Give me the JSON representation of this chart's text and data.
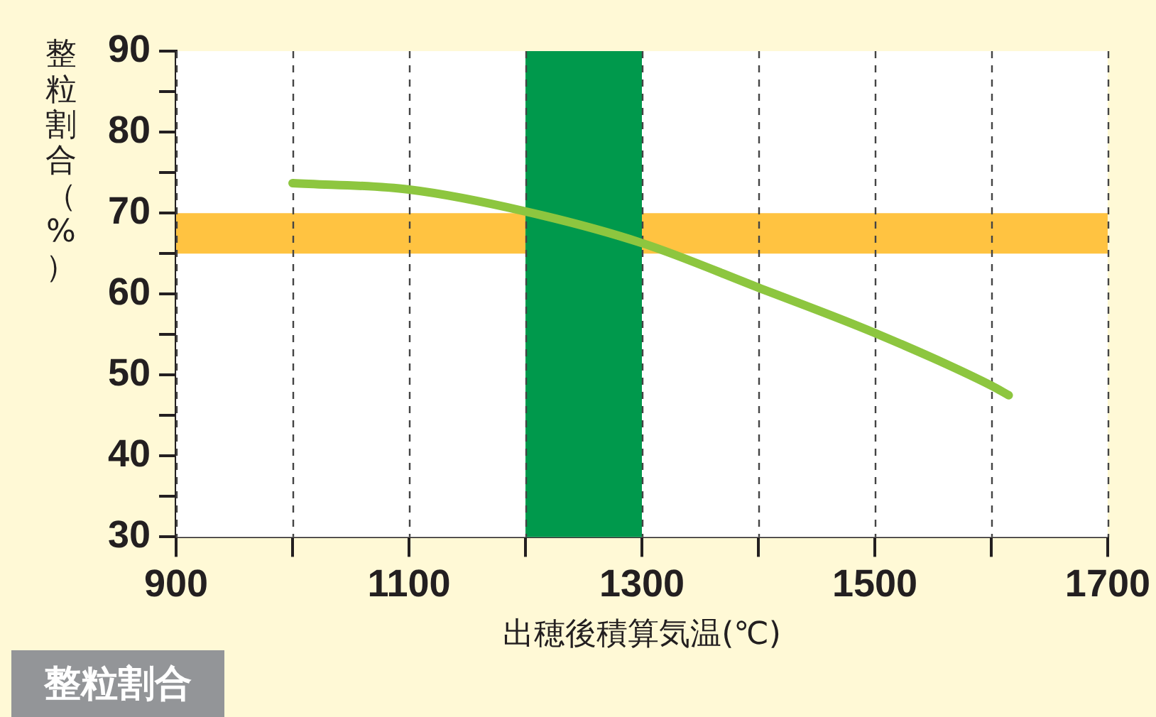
{
  "chart_data": {
    "type": "line",
    "title": "整粒割合",
    "xlabel": "出穂後積算気温(℃)",
    "ylabel": "整粒割合（%）",
    "x": [
      1000,
      1100,
      1200,
      1300,
      1400,
      1500,
      1600,
      1615
    ],
    "series": [
      {
        "color": "#8dc63f",
        "values": [
          73.7,
          72.9,
          70.2,
          66.3,
          60.8,
          55.2,
          48.7,
          47.5
        ]
      }
    ],
    "xlim": [
      900,
      1700
    ],
    "xticks": [
      900,
      {
        "value": 1000,
        "label": null
      },
      1100,
      {
        "value": 1200,
        "label": null
      },
      1300,
      {
        "value": 1400,
        "label": null
      },
      1500,
      {
        "value": 1600,
        "label": null
      },
      1700
    ],
    "ylim": [
      30,
      90
    ],
    "yticks": [
      30,
      {
        "value": 35,
        "label": null
      },
      40,
      {
        "value": 45,
        "label": null
      },
      50,
      {
        "value": 55,
        "label": null
      },
      60,
      {
        "value": 65,
        "label": null
      },
      70,
      {
        "value": 75,
        "label": null
      },
      80,
      {
        "value": 85,
        "label": null
      },
      90
    ],
    "bands": [
      {
        "axis": "y",
        "from": 65,
        "to": 70,
        "color": "#ffc341"
      },
      {
        "axis": "x",
        "from": 1200,
        "to": 1300,
        "color": "#00994c"
      }
    ],
    "grid": "x",
    "legend": false,
    "marker": "none",
    "line_style": "solid"
  }
}
